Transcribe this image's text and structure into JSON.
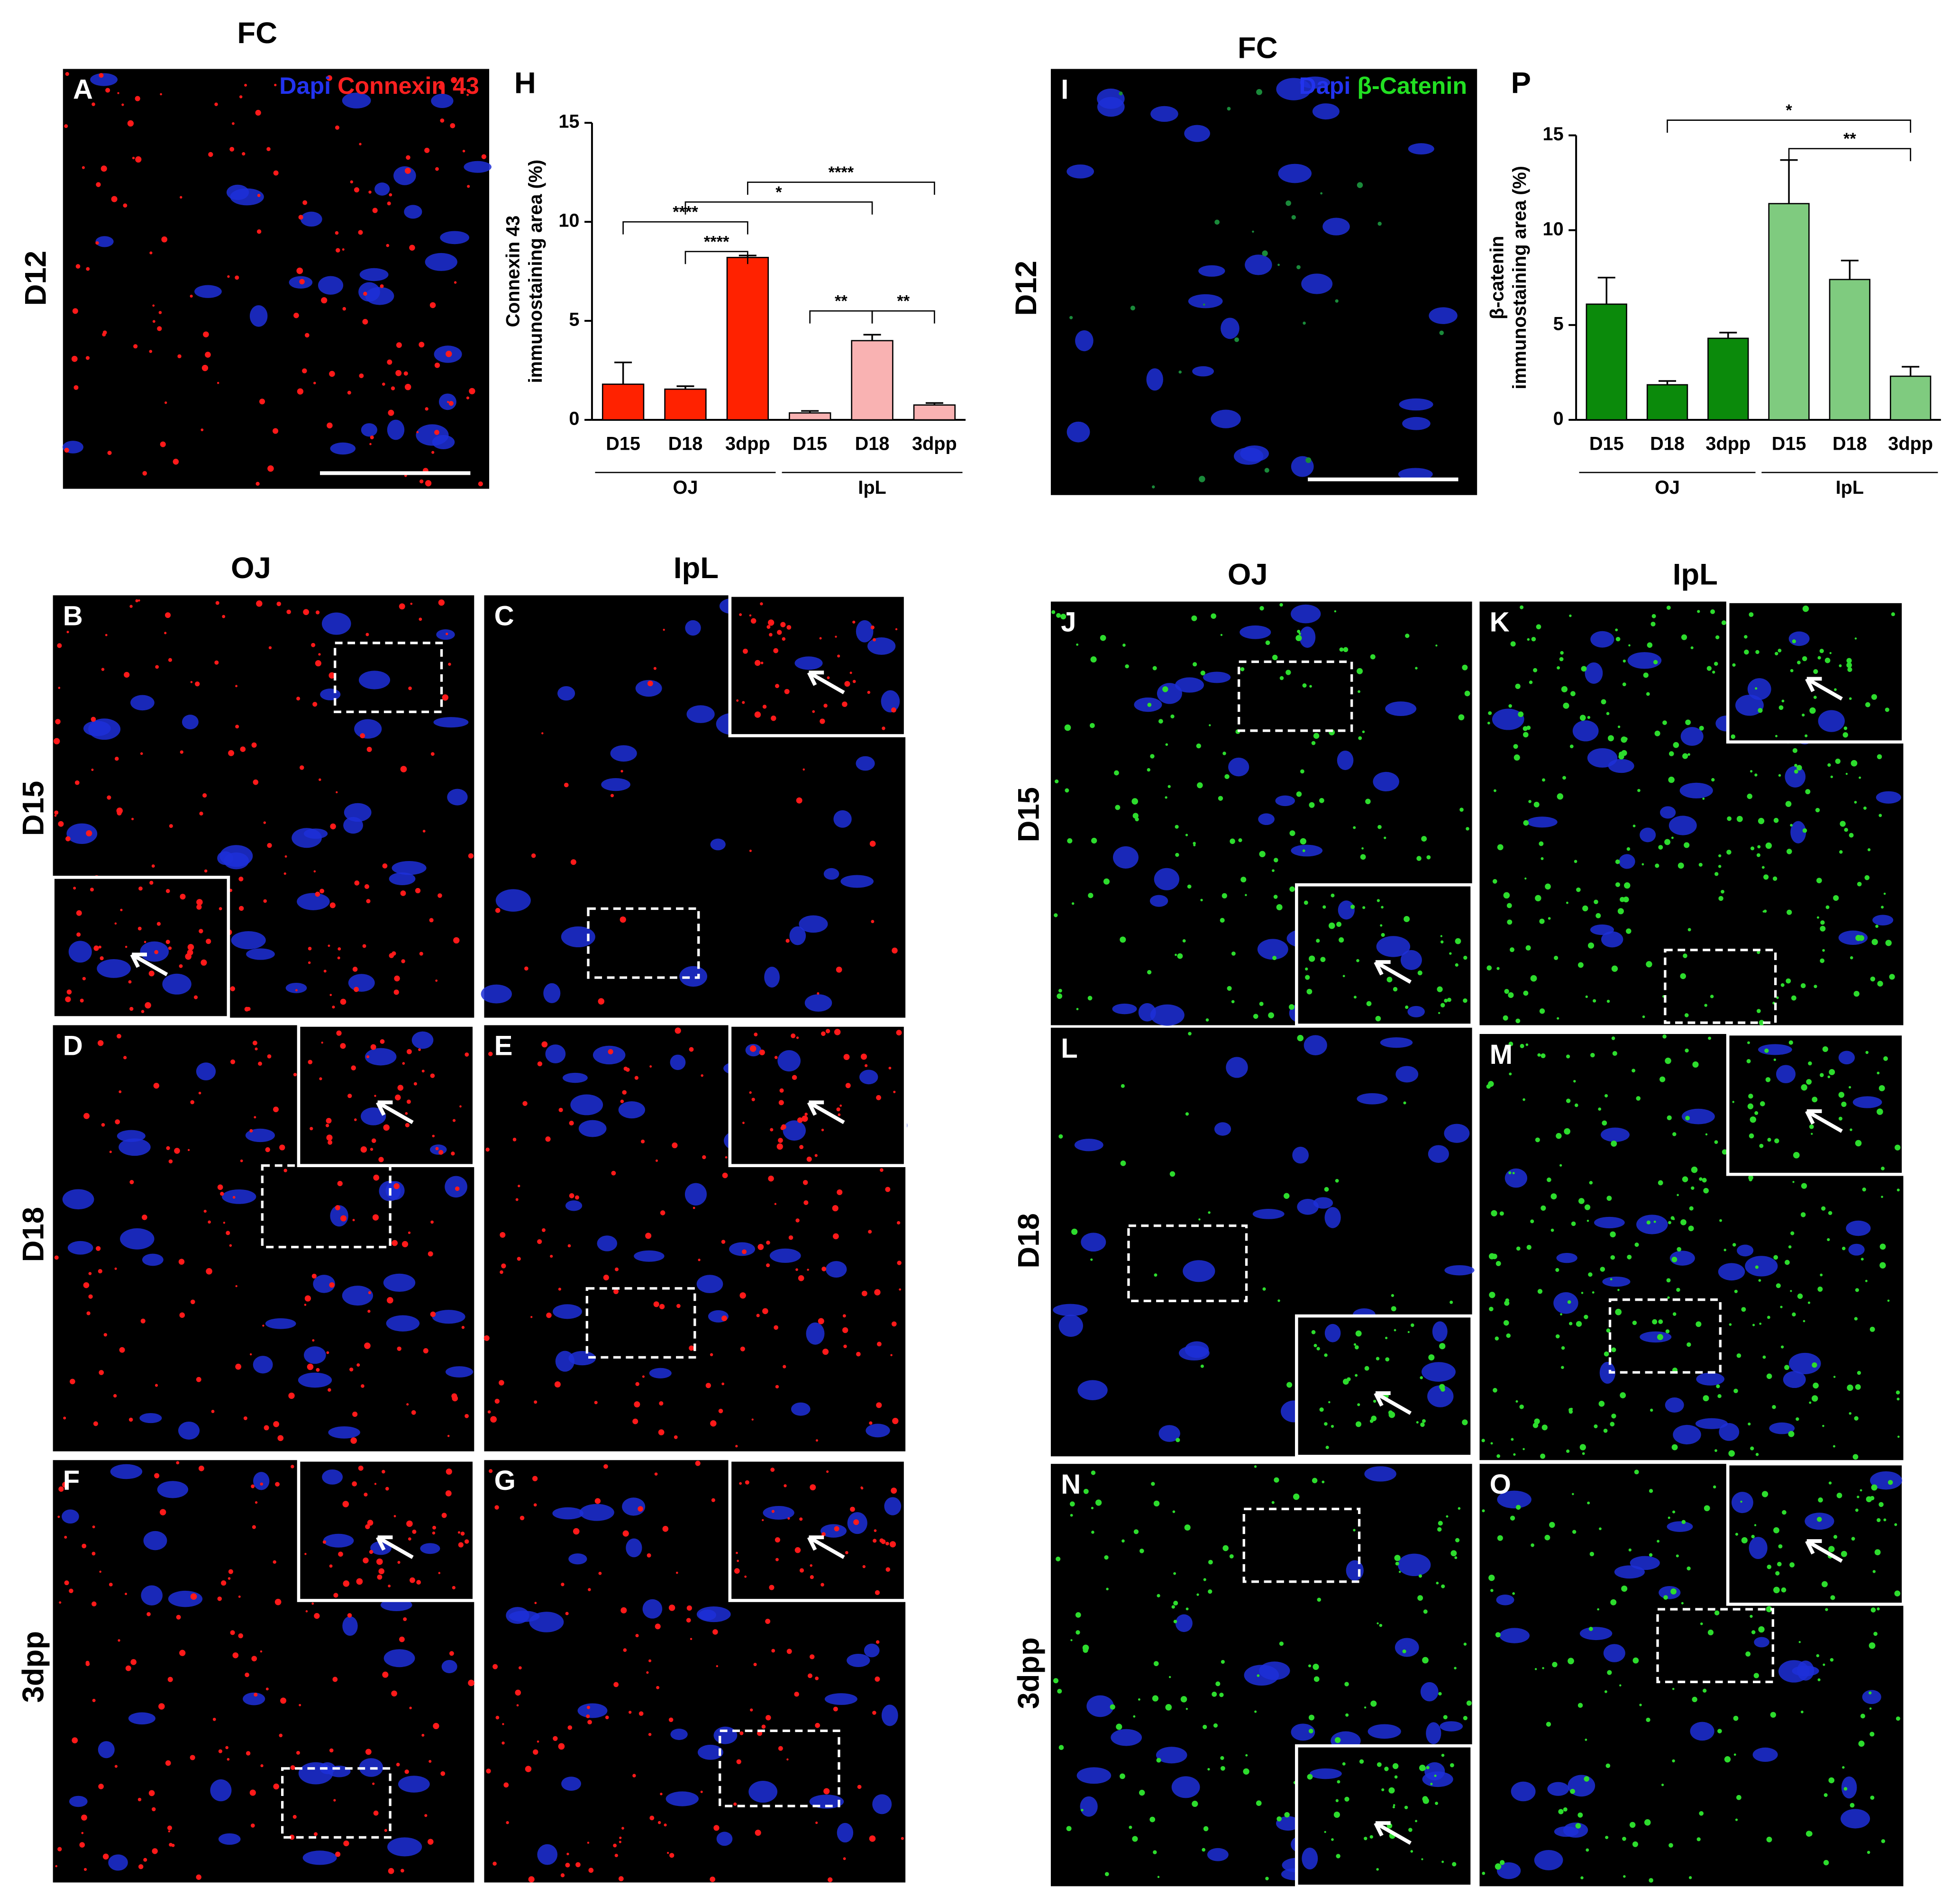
{
  "chart_data": [
    {
      "type": "bar",
      "panel": "H",
      "ylabel": [
        "Connexin 43",
        "immunostaining area (%)"
      ],
      "categories": [
        "D15",
        "D18",
        "3dpp"
      ],
      "series": [
        {
          "name": "OJ",
          "color": "#ff2200",
          "values": [
            1.8,
            1.55,
            8.2
          ],
          "errors": [
            1.1,
            0.15,
            0.1
          ]
        },
        {
          "name": "IpL",
          "color": "#f9b2b2",
          "values": [
            0.35,
            4.0,
            0.75
          ],
          "errors": [
            0.1,
            0.3,
            0.1
          ]
        }
      ],
      "ylim": [
        0,
        15
      ],
      "yticks": [
        0,
        5,
        10,
        15
      ],
      "significance": [
        {
          "bars": [
            0,
            2
          ],
          "label": "****"
        },
        {
          "bars": [
            1,
            2
          ],
          "label": "****"
        },
        {
          "bars": [
            1,
            4
          ],
          "label": "*"
        },
        {
          "bars": [
            2,
            5
          ],
          "label": "****"
        },
        {
          "bars": [
            3,
            4
          ],
          "label": "**"
        },
        {
          "bars": [
            4,
            5
          ],
          "label": "**"
        }
      ]
    },
    {
      "type": "bar",
      "panel": "P",
      "ylabel": [
        "β-catenin",
        "immunostaining area (%)"
      ],
      "categories": [
        "D15",
        "D18",
        "3dpp"
      ],
      "series": [
        {
          "name": "OJ",
          "color": "#0b8a0b",
          "values": [
            6.1,
            1.85,
            4.3
          ],
          "errors": [
            1.4,
            0.2,
            0.3
          ]
        },
        {
          "name": "IpL",
          "color": "#7fcb7f",
          "values": [
            11.4,
            7.4,
            2.3
          ],
          "errors": [
            2.3,
            1.0,
            0.5
          ]
        }
      ],
      "ylim": [
        0,
        15
      ],
      "yticks": [
        0,
        5,
        10,
        15
      ],
      "significance": [
        {
          "bars": [
            1,
            5
          ],
          "label": "*"
        },
        {
          "bars": [
            3,
            5
          ],
          "label": "**"
        }
      ]
    }
  ],
  "figure": {
    "panel_letters": [
      "A",
      "B",
      "C",
      "D",
      "E",
      "F",
      "G",
      "I",
      "J",
      "K",
      "L",
      "M",
      "N",
      "O"
    ],
    "rows": [
      "D12",
      "D15",
      "D18",
      "3dpp"
    ],
    "top_col": "FC",
    "cols": [
      "OJ",
      "IpL"
    ],
    "stain_left": [
      "Dapi",
      "Connexin 43"
    ],
    "stain_right": [
      "Dapi",
      "β-Catenin"
    ]
  }
}
